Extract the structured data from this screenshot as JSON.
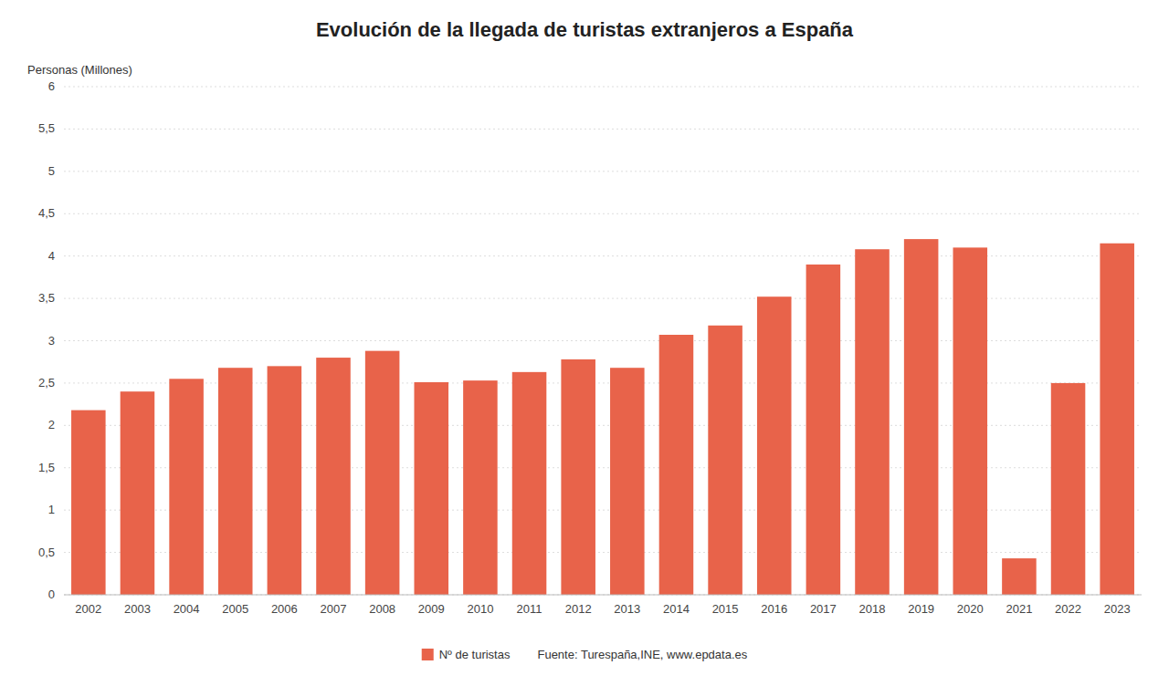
{
  "chart_data": {
    "type": "bar",
    "title": "Evolución de la llegada de turistas extranjeros a España",
    "ylabel": "Personas (Millones)",
    "categories": [
      "2002",
      "2003",
      "2004",
      "2005",
      "2006",
      "2007",
      "2008",
      "2009",
      "2010",
      "2011",
      "2012",
      "2013",
      "2014",
      "2015",
      "2016",
      "2017",
      "2018",
      "2019",
      "2020",
      "2021",
      "2022",
      "2023"
    ],
    "series": [
      {
        "name": "Nº de turistas",
        "color": "#E8634A",
        "values": [
          2.18,
          2.4,
          2.55,
          2.68,
          2.7,
          2.8,
          2.88,
          2.51,
          2.53,
          2.63,
          2.78,
          2.68,
          3.07,
          3.18,
          3.52,
          3.9,
          4.08,
          4.2,
          4.1,
          0.43,
          2.5,
          4.15
        ]
      }
    ],
    "ylim": [
      0,
      6
    ],
    "yticks": [
      0,
      {
        "value": 0.5,
        "label": "0,5"
      },
      1,
      {
        "value": 1.5,
        "label": "1,5"
      },
      2,
      {
        "value": 2.5,
        "label": "2,5"
      },
      3,
      {
        "value": 3.5,
        "label": "3,5"
      },
      4,
      {
        "value": 4.5,
        "label": "4,5"
      },
      5,
      {
        "value": 5.5,
        "label": "5,5"
      },
      6
    ],
    "grid": true,
    "legend": "bottom",
    "annotations": [
      "Fuente: Turespaña,INE, www.epdata.es"
    ]
  }
}
